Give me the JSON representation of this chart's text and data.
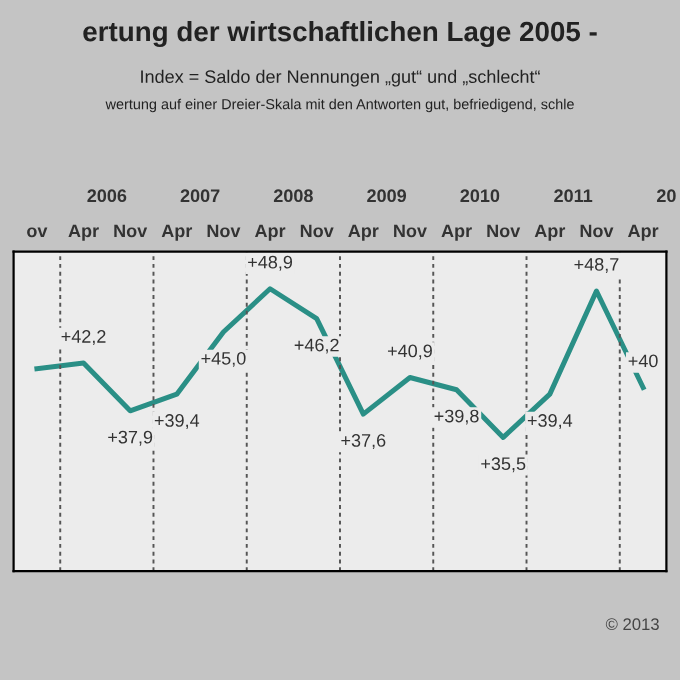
{
  "chart_data": {
    "type": "line",
    "title": "ertung der wirtschaftlichen Lage 2005 -",
    "subtitle": "Index = Saldo der Nennungen „gut“ und „schlecht“",
    "categories": [
      "ov",
      "Apr",
      "Nov",
      "Apr",
      "Nov",
      "Apr",
      "Nov",
      "Apr",
      "Nov",
      "Apr",
      "Nov",
      "Apr",
      "Nov",
      "Apr"
    ],
    "series": [
      {
        "color": "#2a8f86",
        "values": [
          41.7,
          42.2,
          37.9,
          39.4,
          45.0,
          48.9,
          46.2,
          37.6,
          40.9,
          39.8,
          35.5,
          39.4,
          48.7,
          40
        ],
        "value_labels": [
          null,
          "+42,2",
          "+37,9",
          "+39,4",
          "+45,0",
          "+48,9",
          "+46,2",
          "+37,6",
          "+40,9",
          "+39,8",
          "+35,5",
          "+39,4",
          "+48,7",
          "+40"
        ]
      }
    ],
    "annotations": [
      "wertung auf einer Dreier-Skala mit den Antworten gut, befriedigend, schle",
      "2006",
      "2007",
      "2008",
      "2009",
      "2010",
      "2011",
      "20",
      "© 2013"
    ],
    "marker": "none",
    "line_style": "solid",
    "legend": false
  }
}
